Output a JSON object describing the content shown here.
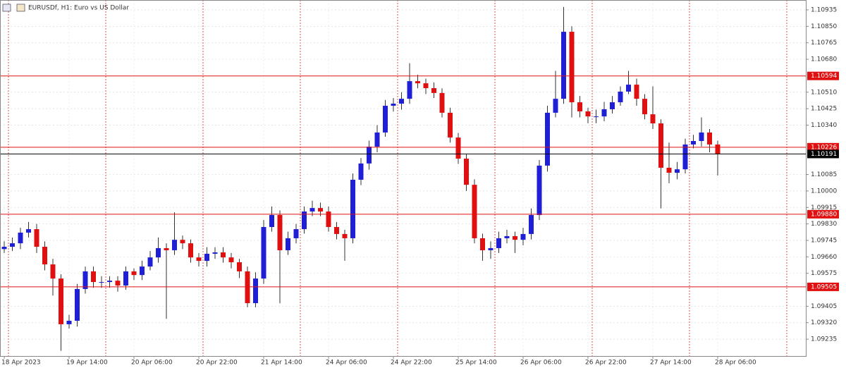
{
  "chart_data": {
    "type": "candlestick",
    "title": "EURUSDf, H1:  Euro vs US Dollar",
    "up_color": "#1f1fd6",
    "down_color": "#e01010",
    "grid": true,
    "ylim": [
      1.09148,
      1.10986
    ],
    "yticks": [
      1.10935,
      {
        "value": 1.1085,
        "label": "1.10850"
      },
      1.10765,
      {
        "value": 1.1068,
        "label": "1.10680"
      },
      {
        "value": 1.1051,
        "label": "1.10510"
      },
      1.10425,
      {
        "value": 1.1034,
        "label": "1.10340"
      },
      1.10085,
      {
        "value": 1.1,
        "label": "1.10000"
      },
      1.09915,
      {
        "value": 1.0983,
        "label": "1.09830"
      },
      1.09745,
      {
        "value": 1.0966,
        "label": "1.09660"
      },
      1.09575,
      1.09405,
      {
        "value": 1.0932,
        "label": "1.09320"
      },
      1.09235
    ],
    "levels": [
      {
        "price": 1.10594,
        "color": "#e01010"
      },
      {
        "price": 1.10226,
        "color": "#e01010"
      },
      {
        "price": {
          "value": 1.0988,
          "label": "1.09880"
        },
        "color": "#e01010"
      },
      {
        "price": 1.09505,
        "color": "#e01010"
      },
      {
        "price": 1.10191,
        "color": "#000000"
      }
    ],
    "categories": [
      "18 Apr 2023",
      null,
      null,
      null,
      null,
      null,
      null,
      null,
      "19 Apr 14:00",
      null,
      null,
      null,
      null,
      null,
      null,
      null,
      "20 Apr 06:00",
      null,
      null,
      null,
      null,
      null,
      null,
      null,
      "20 Apr 22:00",
      null,
      null,
      null,
      null,
      null,
      null,
      null,
      "21 Apr 14:00",
      null,
      null,
      null,
      null,
      null,
      null,
      null,
      "24 Apr 06:00",
      null,
      null,
      null,
      null,
      null,
      null,
      null,
      "24 Apr 22:00",
      null,
      null,
      null,
      null,
      null,
      null,
      null,
      "25 Apr 14:00",
      null,
      null,
      null,
      null,
      null,
      null,
      null,
      "26 Apr 06:00",
      null,
      null,
      null,
      null,
      null,
      null,
      null,
      "26 Apr 22:00",
      null,
      null,
      null,
      null,
      null,
      null,
      null,
      "27 Apr 14:00",
      null,
      null,
      null,
      null,
      null,
      null,
      null,
      "28 Apr 06:00"
    ],
    "open": [
      1.097,
      1.09712,
      1.0973,
      1.09785,
      1.09803,
      1.09712,
      1.09621,
      1.09548,
      1.09312,
      1.0933,
      1.09494,
      1.09585,
      1.0953,
      1.0953,
      1.09537,
      1.09512,
      1.09585,
      1.09566,
      1.0961,
      1.09657,
      1.09705,
      1.09694,
      1.09748,
      1.0973,
      1.09657,
      1.09639,
      1.09676,
      1.09683,
      1.09657,
      1.09632,
      1.09585,
      1.09421,
      1.09548,
      1.09814,
      1.09876,
      1.09694,
      1.09756,
      1.09803,
      1.09894,
      1.09912,
      1.09894,
      1.09814,
      1.09778,
      1.09756,
      1.10058,
      1.10142,
      1.10229,
      1.10302,
      1.1044,
      1.10451,
      1.10476,
      1.10567,
      1.10556,
      1.10531,
      1.10506,
      1.10404,
      1.10276,
      1.10167,
      1.10032,
      1.09756,
      1.09694,
      1.09705,
      1.09756,
      1.09767,
      1.09748,
      1.09778,
      1.09876,
      1.10131,
      1.10404,
      1.10476,
      1.10822,
      1.10458,
      1.10411,
      1.10385,
      1.10385,
      1.10422,
      1.10458,
      1.10513,
      1.10549,
      1.10476,
      1.10396,
      1.10349,
      1.1012,
      1.10094,
      1.10112,
      1.1024,
      1.10258,
      1.10302,
      1.1024
    ],
    "high": [
      1.0974,
      1.0976,
      1.0981,
      1.0984,
      1.0983,
      1.0974,
      1.0965,
      1.0957,
      1.0936,
      1.0952,
      1.0961,
      1.0961,
      1.0956,
      1.0956,
      1.0956,
      1.0961,
      1.096,
      1.0964,
      1.0969,
      1.0976,
      1.0973,
      1.0989,
      1.0977,
      1.0975,
      1.0968,
      1.0971,
      1.0971,
      1.0971,
      1.0968,
      1.0965,
      1.0961,
      1.0958,
      1.0985,
      1.0992,
      1.099,
      1.0979,
      1.0983,
      1.0992,
      1.0995,
      1.0994,
      1.0992,
      1.0984,
      1.098,
      1.1009,
      1.1017,
      1.1026,
      1.1034,
      1.1047,
      1.1048,
      1.1051,
      1.1066,
      1.106,
      1.1058,
      1.1056,
      1.1053,
      1.1043,
      1.103,
      1.1019,
      1.1006,
      1.0978,
      1.0974,
      1.0979,
      1.098,
      1.0979,
      1.0981,
      1.0991,
      1.1016,
      1.1044,
      1.1062,
      1.1095,
      1.1085,
      1.1049,
      1.1043,
      1.1042,
      1.1046,
      1.1049,
      1.1054,
      1.1062,
      1.1058,
      1.105,
      1.1054,
      1.1037,
      1.1025,
      1.1015,
      1.1027,
      1.1029,
      1.1038,
      1.1032,
      1.1026
    ],
    "low": [
      1.0968,
      1.0969,
      1.097,
      1.0976,
      1.0968,
      1.0959,
      1.0946,
      1.09175,
      1.0929,
      1.093,
      1.0947,
      1.095,
      1.095,
      1.095,
      1.0948,
      1.0949,
      1.0954,
      1.0954,
      1.0959,
      1.0963,
      1.0934,
      1.0967,
      1.097,
      1.0963,
      1.0961,
      1.0961,
      1.0965,
      1.0963,
      1.096,
      1.0955,
      1.094,
      1.094,
      1.0952,
      1.0979,
      1.0942,
      1.0967,
      1.0973,
      1.0978,
      1.0987,
      1.0987,
      1.0979,
      1.0975,
      1.0964,
      1.0973,
      1.1003,
      1.1011,
      1.102,
      1.1028,
      1.1041,
      1.1042,
      1.1045,
      1.1053,
      1.105,
      1.1048,
      1.1038,
      1.1025,
      1.1014,
      1.1,
      1.0973,
      1.0964,
      1.0965,
      1.0968,
      1.0973,
      1.0968,
      1.0972,
      1.0975,
      1.0985,
      1.101,
      1.1038,
      1.1045,
      1.1038,
      1.1038,
      1.1035,
      1.1035,
      1.1036,
      1.104,
      1.1044,
      1.105,
      1.1044,
      1.1037,
      1.1032,
      1.0991,
      1.1004,
      1.1006,
      1.1009,
      1.1022,
      1.1023,
      1.102,
      1.1008
    ],
    "close": [
      1.09712,
      1.0973,
      1.09785,
      1.09803,
      1.09712,
      1.09621,
      1.09548,
      1.09312,
      1.0933,
      1.09494,
      1.09585,
      1.0953,
      1.0953,
      1.09537,
      1.09512,
      1.09585,
      1.09566,
      1.0961,
      1.09657,
      1.09705,
      1.09694,
      1.09748,
      1.0973,
      1.09657,
      1.09639,
      1.09676,
      1.09683,
      1.09657,
      1.09632,
      1.09585,
      1.09421,
      1.09548,
      1.09814,
      1.09876,
      1.09694,
      1.09756,
      1.09803,
      1.09894,
      1.09912,
      1.09894,
      1.09814,
      1.09778,
      1.09756,
      1.10058,
      1.10142,
      1.10229,
      1.10302,
      1.1044,
      1.10451,
      1.10476,
      1.10567,
      1.10556,
      1.10531,
      1.10506,
      1.10404,
      1.10276,
      1.10167,
      1.10032,
      1.09756,
      1.09694,
      1.09705,
      1.09756,
      1.09767,
      1.09748,
      1.09778,
      1.09876,
      1.10131,
      1.10404,
      1.10476,
      1.10822,
      1.10458,
      1.10411,
      1.10385,
      1.10385,
      1.10422,
      1.10458,
      1.10513,
      1.10549,
      1.10476,
      1.10396,
      1.10349,
      1.1012,
      1.10094,
      1.10112,
      1.1024,
      1.10258,
      1.10302,
      1.1024,
      1.10191
    ]
  }
}
